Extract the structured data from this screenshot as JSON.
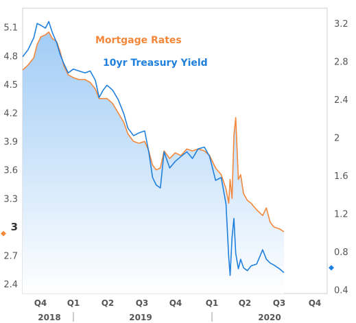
{
  "chart_data": {
    "type": "line",
    "title": "",
    "legend_placement": "top-center",
    "grid": false,
    "left_axis": {
      "ylim": [
        2.3,
        5.3
      ],
      "ticks": [
        5.1,
        4.8,
        4.5,
        4.2,
        3.9,
        3.6,
        3.3,
        3,
        2.7,
        2.4
      ],
      "tick_labels": [
        "5.1",
        "4.8",
        "4.5",
        "4.2",
        "3.9",
        "3.6",
        "3.3",
        "3",
        "2.7",
        "2.4"
      ],
      "emphasized_tick": "3"
    },
    "right_axis": {
      "ylim": [
        0.36,
        3.36
      ],
      "ticks": [
        3.2,
        2.8,
        2.4,
        2,
        1.6,
        1.2,
        0.8,
        0.4
      ],
      "tick_labels": [
        "3.2",
        "2.8",
        "2.4",
        "2",
        "1.6",
        "1.2",
        "0.8",
        "0.4"
      ]
    },
    "x_axis": {
      "quarter_labels": [
        "Q4",
        "Q1",
        "Q2",
        "Q3",
        "Q4",
        "Q1",
        "Q2",
        "Q3",
        "Q4"
      ],
      "year_labels": [
        "2018",
        "2019",
        "2020"
      ],
      "xlim": [
        "2018-09-01",
        "2020-11-25"
      ]
    },
    "series": [
      {
        "name": "Mortgage Rates",
        "axis": "left",
        "color": "#f5873a",
        "marker_value": 2.93,
        "points": [
          [
            "2018-09-01",
            4.65
          ],
          [
            "2018-09-15",
            4.7
          ],
          [
            "2018-10-01",
            4.78
          ],
          [
            "2018-10-10",
            4.92
          ],
          [
            "2018-10-20",
            5.0
          ],
          [
            "2018-11-01",
            5.02
          ],
          [
            "2018-11-10",
            5.05
          ],
          [
            "2018-11-20",
            4.98
          ],
          [
            "2018-12-01",
            4.95
          ],
          [
            "2018-12-10",
            4.85
          ],
          [
            "2018-12-20",
            4.7
          ],
          [
            "2019-01-01",
            4.6
          ],
          [
            "2019-01-15",
            4.57
          ],
          [
            "2019-01-30",
            4.55
          ],
          [
            "2019-02-15",
            4.55
          ],
          [
            "2019-03-01",
            4.52
          ],
          [
            "2019-03-15",
            4.45
          ],
          [
            "2019-03-25",
            4.35
          ],
          [
            "2019-04-05",
            4.35
          ],
          [
            "2019-04-15",
            4.35
          ],
          [
            "2019-04-30",
            4.3
          ],
          [
            "2019-05-15",
            4.2
          ],
          [
            "2019-05-30",
            4.1
          ],
          [
            "2019-06-10",
            3.98
          ],
          [
            "2019-06-25",
            3.9
          ],
          [
            "2019-07-10",
            3.88
          ],
          [
            "2019-07-25",
            3.9
          ],
          [
            "2019-08-05",
            3.8
          ],
          [
            "2019-08-15",
            3.65
          ],
          [
            "2019-08-25",
            3.6
          ],
          [
            "2019-09-05",
            3.62
          ],
          [
            "2019-09-15",
            3.8
          ],
          [
            "2019-09-30",
            3.72
          ],
          [
            "2019-10-15",
            3.78
          ],
          [
            "2019-10-30",
            3.75
          ],
          [
            "2019-11-15",
            3.82
          ],
          [
            "2019-11-30",
            3.8
          ],
          [
            "2019-12-15",
            3.82
          ],
          [
            "2020-01-01",
            3.8
          ],
          [
            "2020-01-15",
            3.75
          ],
          [
            "2020-01-31",
            3.62
          ],
          [
            "2020-02-15",
            3.55
          ],
          [
            "2020-02-28",
            3.4
          ],
          [
            "2020-03-06",
            3.25
          ],
          [
            "2020-03-10",
            3.5
          ],
          [
            "2020-03-15",
            3.3
          ],
          [
            "2020-03-20",
            3.96
          ],
          [
            "2020-03-25",
            4.15
          ],
          [
            "2020-04-01",
            3.5
          ],
          [
            "2020-04-07",
            3.55
          ],
          [
            "2020-04-15",
            3.35
          ],
          [
            "2020-04-25",
            3.28
          ],
          [
            "2020-05-05",
            3.25
          ],
          [
            "2020-05-20",
            3.18
          ],
          [
            "2020-06-05",
            3.12
          ],
          [
            "2020-06-15",
            3.2
          ],
          [
            "2020-06-25",
            3.05
          ],
          [
            "2020-07-05",
            3.0
          ],
          [
            "2020-07-20",
            2.98
          ],
          [
            "2020-08-01",
            2.95
          ]
        ]
      },
      {
        "name": "10yr Treasury Yield",
        "axis": "right",
        "color": "#1e7fdc",
        "marker_value": 0.63,
        "points": [
          [
            "2018-09-01",
            2.85
          ],
          [
            "2018-09-15",
            2.92
          ],
          [
            "2018-10-01",
            3.05
          ],
          [
            "2018-10-10",
            3.2
          ],
          [
            "2018-10-20",
            3.18
          ],
          [
            "2018-11-01",
            3.15
          ],
          [
            "2018-11-10",
            3.22
          ],
          [
            "2018-11-20",
            3.1
          ],
          [
            "2018-12-01",
            3.0
          ],
          [
            "2018-12-10",
            2.88
          ],
          [
            "2018-12-20",
            2.78
          ],
          [
            "2019-01-01",
            2.68
          ],
          [
            "2019-01-15",
            2.72
          ],
          [
            "2019-01-30",
            2.7
          ],
          [
            "2019-02-15",
            2.68
          ],
          [
            "2019-03-01",
            2.7
          ],
          [
            "2019-03-15",
            2.6
          ],
          [
            "2019-03-25",
            2.42
          ],
          [
            "2019-04-05",
            2.5
          ],
          [
            "2019-04-15",
            2.55
          ],
          [
            "2019-04-30",
            2.5
          ],
          [
            "2019-05-15",
            2.4
          ],
          [
            "2019-05-30",
            2.25
          ],
          [
            "2019-06-10",
            2.1
          ],
          [
            "2019-06-25",
            2.02
          ],
          [
            "2019-07-10",
            2.05
          ],
          [
            "2019-07-25",
            2.07
          ],
          [
            "2019-08-05",
            1.85
          ],
          [
            "2019-08-15",
            1.58
          ],
          [
            "2019-08-25",
            1.5
          ],
          [
            "2019-09-05",
            1.47
          ],
          [
            "2019-09-15",
            1.85
          ],
          [
            "2019-09-30",
            1.68
          ],
          [
            "2019-10-15",
            1.75
          ],
          [
            "2019-10-30",
            1.8
          ],
          [
            "2019-11-15",
            1.85
          ],
          [
            "2019-11-30",
            1.78
          ],
          [
            "2019-12-15",
            1.88
          ],
          [
            "2020-01-01",
            1.9
          ],
          [
            "2020-01-15",
            1.8
          ],
          [
            "2020-01-31",
            1.55
          ],
          [
            "2020-02-15",
            1.58
          ],
          [
            "2020-02-28",
            1.3
          ],
          [
            "2020-03-06",
            0.75
          ],
          [
            "2020-03-10",
            0.55
          ],
          [
            "2020-03-15",
            0.95
          ],
          [
            "2020-03-20",
            1.15
          ],
          [
            "2020-03-25",
            0.78
          ],
          [
            "2020-04-01",
            0.62
          ],
          [
            "2020-04-07",
            0.72
          ],
          [
            "2020-04-15",
            0.63
          ],
          [
            "2020-04-25",
            0.6
          ],
          [
            "2020-05-05",
            0.65
          ],
          [
            "2020-05-20",
            0.67
          ],
          [
            "2020-06-05",
            0.82
          ],
          [
            "2020-06-15",
            0.72
          ],
          [
            "2020-06-25",
            0.68
          ],
          [
            "2020-07-05",
            0.66
          ],
          [
            "2020-07-20",
            0.62
          ],
          [
            "2020-08-01",
            0.58
          ]
        ]
      }
    ]
  }
}
